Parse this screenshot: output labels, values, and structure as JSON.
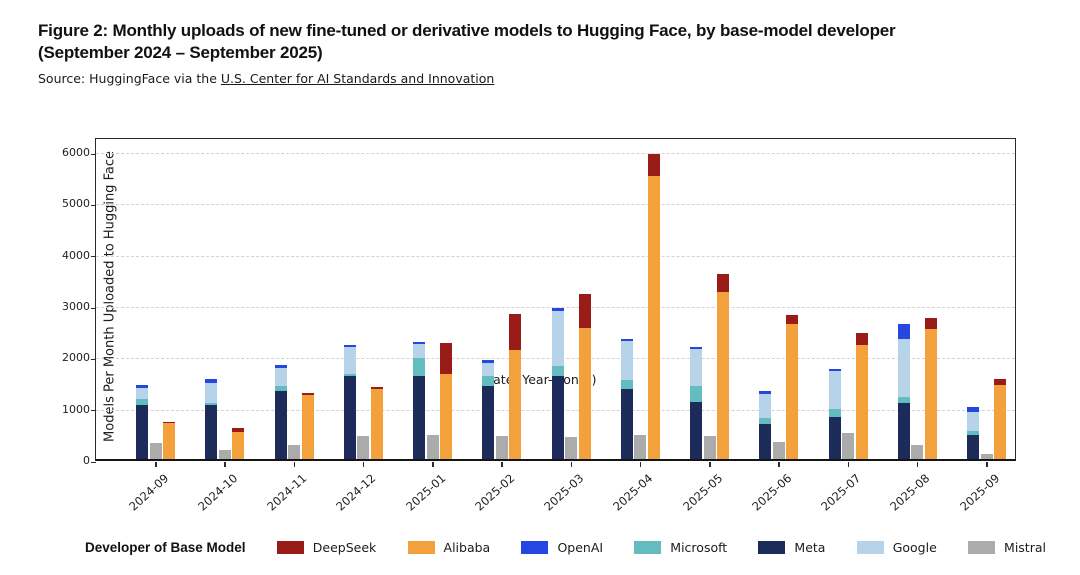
{
  "header": {
    "title_line1": "Figure 2: Monthly uploads of new fine-tuned or derivative models to Hugging Face, by base-model developer",
    "title_line2": "(September 2024 – September 2025)",
    "source_prefix": "Source: HuggingFace via the ",
    "source_link": "U.S. Center for AI Standards and Innovation"
  },
  "chart_data": {
    "type": "bar",
    "variant": "grouped-stacked",
    "title": "Monthly uploads of new fine-tuned or derivative models to Hugging Face, by base-model developer",
    "xlabel": "Date (Year-Month)",
    "ylabel": "Models Per Month Uploaded to Hugging Face",
    "ylim": [
      0,
      6000
    ],
    "yticks": [
      0,
      1000,
      2000,
      3000,
      4000,
      5000,
      6000
    ],
    "grid": "horizontal-dashed",
    "categories": [
      "2024-09",
      "2024-10",
      "2024-11",
      "2024-12",
      "2025-01",
      "2025-02",
      "2025-03",
      "2025-04",
      "2025-05",
      "2025-06",
      "2025-07",
      "2025-08",
      "2025-09"
    ],
    "bar_groups": [
      [
        "Meta",
        "Microsoft",
        "Google",
        "OpenAI"
      ],
      [
        "Mistral"
      ],
      [
        "Alibaba",
        "DeepSeek"
      ]
    ],
    "series": {
      "DeepSeek": {
        "color": "#9a1c17",
        "values": [
          25,
          80,
          40,
          25,
          610,
          690,
          670,
          430,
          350,
          170,
          230,
          225,
          110
        ]
      },
      "Alibaba": {
        "color": "#f2a13d",
        "values": [
          695,
          530,
          1245,
          1370,
          1650,
          2130,
          2550,
          5520,
          3250,
          2630,
          2230,
          2530,
          1440
        ]
      },
      "OpenAI": {
        "color": "#2546e0",
        "values": [
          50,
          65,
          50,
          45,
          45,
          45,
          45,
          50,
          40,
          55,
          45,
          290,
          95
        ]
      },
      "Microsoft": {
        "color": "#63bcc0",
        "values": [
          100,
          45,
          95,
          50,
          365,
          190,
          210,
          160,
          300,
          105,
          165,
          110,
          85
        ]
      },
      "Meta": {
        "color": "#1c2b5a",
        "values": [
          1060,
          1050,
          1330,
          1610,
          1610,
          1420,
          1610,
          1370,
          1120,
          685,
          810,
          1100,
          460
        ]
      },
      "Google": {
        "color": "#b7d3ea",
        "values": [
          230,
          390,
          355,
          520,
          260,
          265,
          1070,
          760,
          730,
          485,
          730,
          1130,
          370
        ]
      },
      "Mistral": {
        "color": "#ababab",
        "values": [
          310,
          180,
          280,
          440,
          460,
          455,
          420,
          470,
          450,
          330,
          500,
          270,
          100
        ]
      }
    },
    "legend": {
      "title": "Developer of Base Model",
      "position": "bottom",
      "order": [
        "DeepSeek",
        "Alibaba",
        "OpenAI",
        "Microsoft",
        "Meta",
        "Google",
        "Mistral"
      ]
    }
  }
}
